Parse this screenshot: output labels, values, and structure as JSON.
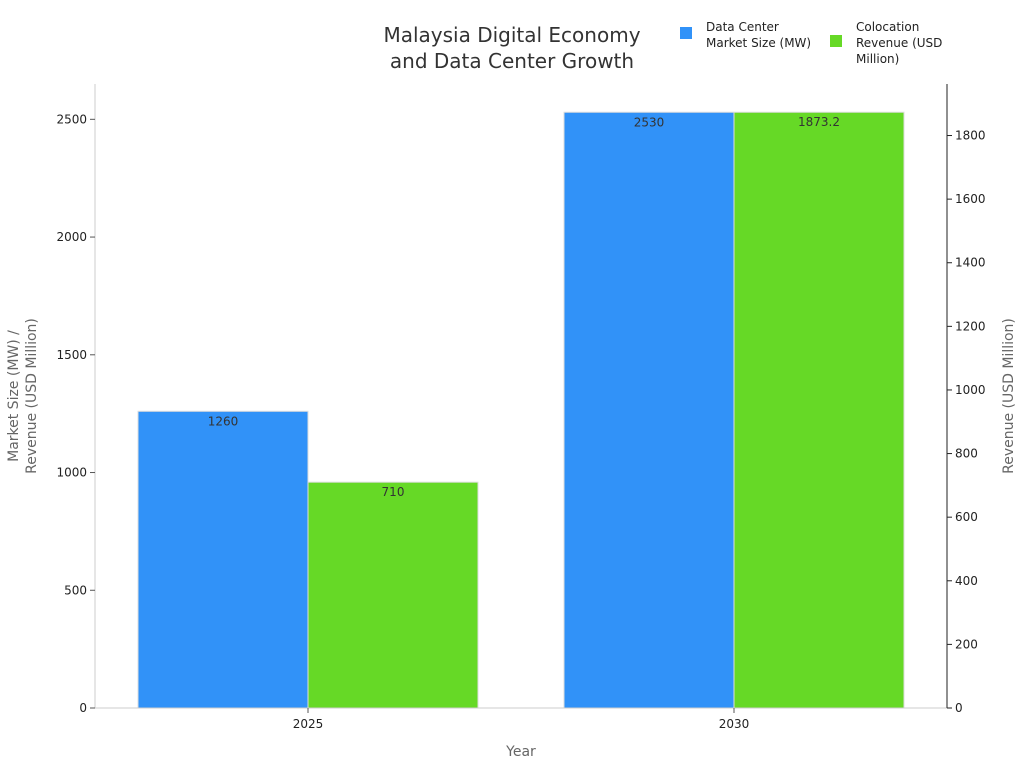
{
  "chart_data": {
    "type": "bar",
    "title": [
      "Malaysia Digital Economy",
      "and Data Center Growth"
    ],
    "xlabel": "Year",
    "ylabel_left": [
      "Market Size (MW) /",
      "Revenue (USD Million)"
    ],
    "ylabel_right": "Revenue (USD Million)",
    "categories": [
      "2025",
      "2030"
    ],
    "series": [
      {
        "name": [
          "Data Center",
          "Market Size (MW)"
        ],
        "axis": "left",
        "values": [
          1260,
          2530
        ],
        "value_labels": [
          "1260",
          "2530"
        ],
        "color": "#3192f8"
      },
      {
        "name": [
          "Colocation",
          "Revenue (USD",
          "Million)"
        ],
        "axis": "right",
        "values": [
          710,
          1873.2
        ],
        "value_labels": [
          "710",
          "1873.2"
        ],
        "color": "#66d926"
      }
    ],
    "y_left": {
      "ylim": [
        0,
        2650
      ],
      "ticks": [
        0,
        500,
        1000,
        1500,
        2000,
        2500
      ]
    },
    "y_right": {
      "ylim": [
        0,
        1962
      ],
      "ticks": [
        0,
        200,
        400,
        600,
        800,
        1000,
        1200,
        1400,
        1600,
        1800
      ]
    },
    "grid": false,
    "legend_position": "top-right"
  },
  "colors": {
    "axis_line": "#cccccc",
    "right_axis_line": "#222222",
    "bar_edge": "#dddddd"
  }
}
